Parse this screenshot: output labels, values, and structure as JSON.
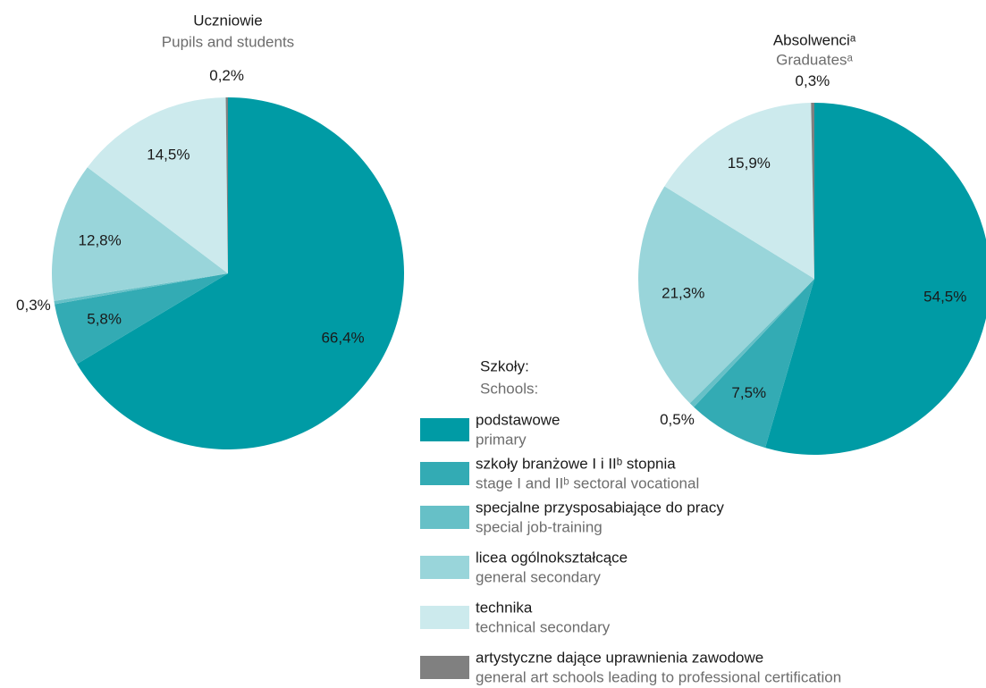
{
  "chart_data": [
    {
      "type": "pie",
      "title": "Uczniowie",
      "subtitle": "Pupils and students",
      "values": [
        66.4,
        5.8,
        0.3,
        12.8,
        14.5,
        0.2
      ],
      "value_labels": [
        "66,4%",
        "5,8%",
        "0,3%",
        "12,8%",
        "14,5%",
        "0,2%"
      ]
    },
    {
      "type": "pie",
      "title": "Absolwenciᵃ",
      "subtitle": "Graduatesᵃ",
      "values": [
        54.5,
        7.5,
        0.5,
        21.3,
        15.9,
        0.3
      ],
      "value_labels": [
        "54,5%",
        "7,5%",
        "0,5%",
        "21,3%",
        "15,9%",
        "0,3%"
      ]
    }
  ],
  "legend": {
    "title": "Szkoły:",
    "subtitle": "Schools:",
    "items": [
      {
        "name": "podstawowe",
        "name_en": "primary",
        "color": "#009ba5"
      },
      {
        "name": "szkoły branżowe I i IIᵇ stopnia",
        "name_en": "stage I and IIᵇ sectoral vocational",
        "color": "#33abb4"
      },
      {
        "name": "specjalne przysposabiające do pracy",
        "name_en": "special job-training",
        "color": "#66c0c7"
      },
      {
        "name": "licea ogólnokształcące",
        "name_en": "general secondary",
        "color": "#99d5da"
      },
      {
        "name": "technika",
        "name_en": "technical secondary",
        "color": "#cceaed"
      },
      {
        "name": "artystyczne dające uprawnienia zawodowe",
        "name_en": "general art schools leading to professional certification",
        "color": "#808080"
      }
    ]
  }
}
